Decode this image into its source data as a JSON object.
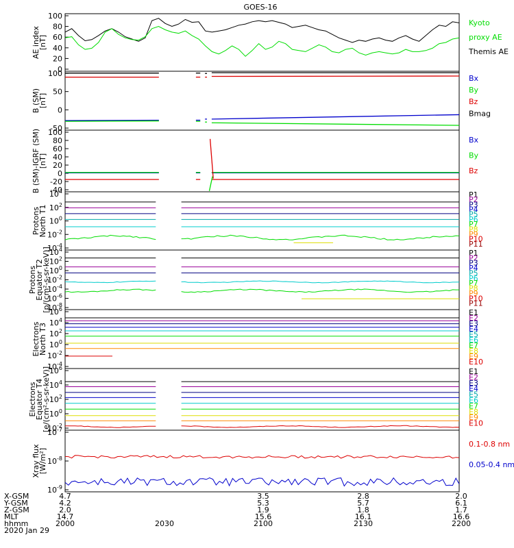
{
  "title": "GOES-16",
  "colors": {
    "black": "#000000",
    "green": "#00dd00",
    "blue": "#0000cc",
    "red": "#dd0000",
    "navy": "#000080",
    "purple": "#990099",
    "cyan": "#00cccc",
    "teal": "#00aaaa",
    "orange": "#ff8800",
    "yellow": "#dddd00",
    "darkred": "#990000"
  },
  "chart_data": [
    {
      "type": "line",
      "id": "ae",
      "ylabel": [
        "AE index",
        "[nT]"
      ],
      "yticks": [
        "100",
        "80",
        "60",
        "40",
        "20",
        "0"
      ],
      "ylim": [
        0,
        100
      ],
      "legend": [
        {
          "text": "Kyoto",
          "color": "green"
        },
        {
          "text": "proxy AE",
          "color": "green"
        },
        {
          "text": "Themis AE",
          "color": "black"
        }
      ],
      "series": [
        {
          "name": "Themis AE",
          "color": "black",
          "values": [
            68,
            74,
            62,
            53,
            55,
            62,
            70,
            74,
            68,
            60,
            56,
            52,
            58,
            88,
            92,
            83,
            78,
            82,
            90,
            85,
            86,
            70,
            68,
            70,
            72,
            76,
            80,
            82,
            86,
            88,
            86,
            88,
            85,
            82,
            76,
            78,
            80,
            76,
            72,
            70,
            64,
            58,
            54,
            50,
            54,
            52,
            56,
            58,
            54,
            52,
            58,
            62,
            56,
            52,
            62,
            72,
            80,
            78,
            86,
            84
          ]
        },
        {
          "name": "Kyoto proxy AE",
          "color": "green",
          "values": [
            58,
            60,
            46,
            38,
            40,
            50,
            68,
            74,
            64,
            58,
            55,
            54,
            60,
            74,
            78,
            72,
            68,
            66,
            70,
            62,
            56,
            44,
            34,
            30,
            36,
            44,
            38,
            26,
            36,
            48,
            38,
            42,
            52,
            48,
            38,
            36,
            34,
            40,
            46,
            42,
            34,
            32,
            38,
            40,
            32,
            28,
            32,
            34,
            32,
            30,
            32,
            38,
            34,
            34,
            36,
            40,
            48,
            50,
            56,
            58
          ]
        }
      ]
    },
    {
      "type": "line",
      "id": "bsm",
      "ylabel": [
        "B (SM)",
        "[nT]"
      ],
      "yticks": [
        "100",
        "50",
        "0",
        "-50"
      ],
      "ylim": [
        -60,
        100
      ],
      "legend": [
        {
          "text": "Bx",
          "color": "blue"
        },
        {
          "text": "By",
          "color": "green"
        },
        {
          "text": "Bz",
          "color": "red"
        },
        {
          "text": "Bmag",
          "color": "black"
        }
      ],
      "series": [
        {
          "name": "Bmag",
          "color": "black",
          "segments": [
            [
              0,
              0.238,
              95,
              95
            ],
            [
              0.332,
              0.343,
              95,
              95
            ],
            [
              0.355,
              0.36,
              94,
              94
            ],
            [
              0.372,
              1,
              96,
              96
            ]
          ]
        },
        {
          "name": "Bz",
          "color": "red",
          "segments": [
            [
              0,
              0.238,
              84,
              84
            ],
            [
              0.332,
              0.343,
              84,
              84
            ],
            [
              0.355,
              0.36,
              84,
              84
            ],
            [
              0.372,
              1,
              86,
              87
            ]
          ]
        },
        {
          "name": "Bx",
          "color": "blue",
          "segments": [
            [
              0,
              0.238,
              -34,
              -33
            ],
            [
              0.332,
              0.343,
              -33,
              -33
            ],
            [
              0.355,
              0.36,
              -30,
              -30
            ],
            [
              0.372,
              1,
              -30,
              -18
            ]
          ]
        },
        {
          "name": "By",
          "color": "green",
          "segments": [
            [
              0,
              0.238,
              -36,
              -35
            ],
            [
              0.332,
              0.343,
              -36,
              -36
            ],
            [
              0.355,
              0.36,
              -38,
              -38
            ],
            [
              0.372,
              1,
              -40,
              -47
            ]
          ]
        }
      ]
    },
    {
      "type": "line",
      "id": "bigrf",
      "ylabel": [
        "B (SM)-IGRF (SM)",
        "[nT]"
      ],
      "yticks": [
        "100",
        "80",
        "60",
        "40",
        "20",
        "0",
        "-20",
        "-40"
      ],
      "ylim": [
        -40,
        100
      ],
      "legend": [
        {
          "text": "Bx",
          "color": "blue"
        },
        {
          "text": "By",
          "color": "green"
        },
        {
          "text": "Bz",
          "color": "red"
        }
      ],
      "series": [
        {
          "name": "Bx",
          "color": "blue",
          "segments": [
            [
              0,
              0.238,
              3,
              3
            ],
            [
              0.332,
              0.343,
              3,
              3
            ],
            [
              0.372,
              1,
              3,
              3
            ]
          ]
        },
        {
          "name": "By",
          "color": "green",
          "segments": [
            [
              0,
              0.238,
              4,
              4
            ],
            [
              0.332,
              0.343,
              4,
              4
            ],
            [
              0.372,
              1,
              4,
              4
            ]
          ]
        },
        {
          "name": "Bz",
          "color": "red",
          "segments": [
            [
              0,
              0.238,
              -12,
              -12
            ],
            [
              0.332,
              0.343,
              -12,
              -12
            ],
            [
              0.372,
              1,
              -12,
              -12
            ]
          ]
        },
        {
          "name": "Spike Bz",
          "color": "red",
          "segments": [
            [
              0.368,
              0.376,
              80,
              -10
            ]
          ]
        },
        {
          "name": "Spike By",
          "color": "green",
          "segments": [
            [
              0.366,
              0.374,
              -38,
              -5
            ]
          ]
        }
      ]
    },
    {
      "type": "line",
      "id": "pn",
      "log": true,
      "ylabel": [
        "Protons",
        "North T1"
      ],
      "yticks": [
        "10^4",
        "10^2",
        "10^0",
        "10^-2",
        "10^-4"
      ],
      "ylim": [
        -4,
        4
      ],
      "legend": [
        "P1",
        "P2",
        "P3",
        "P4",
        "P5",
        "P6",
        "P7",
        "P8",
        "P9",
        "P10",
        "P11"
      ],
      "legend_colors": [
        "black",
        "purple",
        "navy",
        "blue",
        "teal",
        "cyan",
        "green",
        "yellow",
        "orange",
        "red",
        "darkred"
      ],
      "gap": [
        0.23,
        0.295
      ],
      "series": [
        {
          "name": "P1",
          "color": "black",
          "level": 2.6
        },
        {
          "name": "P2",
          "color": "purple",
          "level": 1.8
        },
        {
          "name": "P3",
          "color": "navy",
          "level": 1.0
        },
        {
          "name": "P5",
          "color": "teal",
          "level": 0.2
        },
        {
          "name": "P6",
          "color": "cyan",
          "level": -0.8
        },
        {
          "name": "P7",
          "color": "green",
          "level": -2.3,
          "wiggle": 0.5
        },
        {
          "name": "P8",
          "color": "yellow",
          "level": -3.0,
          "from": 0.58,
          "to": 0.68
        }
      ]
    },
    {
      "type": "line",
      "id": "pe",
      "log": true,
      "ylabel": [
        "Protons",
        "Equator T2",
        "[p/(cm²-s-sr-keV)]"
      ],
      "yticks": [
        "10^4",
        "10^2",
        "10^0",
        "10^-2",
        "10^-4",
        "10^-6",
        "10^-8"
      ],
      "ylim": [
        -8,
        4
      ],
      "legend": [
        "P1",
        "P2",
        "P3",
        "P4",
        "P5",
        "P6",
        "P7",
        "P8",
        "P9",
        "P10",
        "P11"
      ],
      "legend_colors": [
        "black",
        "purple",
        "navy",
        "blue",
        "teal",
        "cyan",
        "green",
        "yellow",
        "orange",
        "red",
        "darkred"
      ],
      "gap": [
        0.23,
        0.295
      ],
      "series": [
        {
          "name": "P1",
          "color": "black",
          "level": 2.4
        },
        {
          "name": "P2",
          "color": "purple",
          "level": 0.6
        },
        {
          "name": "P3",
          "color": "navy",
          "level": -0.6
        },
        {
          "name": "P5",
          "color": "cyan",
          "level": -2.4,
          "wiggle": 0.3
        },
        {
          "name": "P7",
          "color": "green",
          "level": -4.2,
          "wiggle": 0.5
        },
        {
          "name": "P8",
          "color": "yellow",
          "level": -5.8,
          "from": 0.6,
          "to": 1
        }
      ]
    },
    {
      "type": "line",
      "id": "en",
      "log": true,
      "ylabel": [
        "Electrons",
        "North T3"
      ],
      "yticks": [
        "10^6",
        "10^4",
        "10^2",
        "10^0",
        "10^-2",
        "10^-4"
      ],
      "ylim": [
        -4,
        6
      ],
      "legend": [
        "E1",
        "E2",
        "E3",
        "E4",
        "E5",
        "E6",
        "E7",
        "E8",
        "E9",
        "E10"
      ],
      "legend_colors": [
        "black",
        "purple",
        "navy",
        "blue",
        "teal",
        "cyan",
        "green",
        "yellow",
        "orange",
        "red"
      ],
      "series": [
        {
          "name": "E1",
          "color": "black",
          "level": 4.6
        },
        {
          "name": "E2",
          "color": "purple",
          "level": 4.1
        },
        {
          "name": "E3",
          "color": "navy",
          "level": 3.6
        },
        {
          "name": "E4",
          "color": "blue",
          "level": 3.0
        },
        {
          "name": "E5",
          "color": "cyan",
          "level": 2.4
        },
        {
          "name": "E6",
          "color": "green",
          "level": 1.5
        },
        {
          "name": "E7",
          "color": "yellow",
          "level": 0.3
        },
        {
          "name": "E8",
          "color": "orange",
          "level": -0.6
        },
        {
          "name": "E9",
          "color": "red",
          "level": -1.9,
          "from": 0,
          "to": 0.12
        }
      ]
    },
    {
      "type": "line",
      "id": "ee",
      "log": true,
      "ylabel": [
        "Electrons",
        "Equator T4",
        "[e/(cm²-s-sr-keV)]"
      ],
      "yticks": [
        "10^6",
        "10^4",
        "10^2",
        "10^0",
        "10^-2"
      ],
      "ylim": [
        -2.5,
        6
      ],
      "legend": [
        "E1",
        "E2",
        "E3",
        "E4",
        "E5",
        "E6",
        "E7",
        "E8",
        "E9",
        "E10"
      ],
      "legend_colors": [
        "black",
        "purple",
        "navy",
        "blue",
        "teal",
        "cyan",
        "green",
        "yellow",
        "orange",
        "red"
      ],
      "gap": [
        0.23,
        0.295
      ],
      "series": [
        {
          "name": "E1",
          "color": "black",
          "level": 4.2
        },
        {
          "name": "E2",
          "color": "purple",
          "level": 3.5
        },
        {
          "name": "E3",
          "color": "navy",
          "level": 2.7
        },
        {
          "name": "E4",
          "color": "blue",
          "level": 2.0
        },
        {
          "name": "E5",
          "color": "cyan",
          "level": 1.2
        },
        {
          "name": "E6",
          "color": "green",
          "level": 0.4
        },
        {
          "name": "E7",
          "color": "yellow",
          "level": -0.5
        },
        {
          "name": "E8",
          "color": "orange",
          "level": -1.2
        },
        {
          "name": "E9",
          "color": "red",
          "level": -2.0,
          "wiggle": 0.2
        }
      ]
    },
    {
      "type": "line",
      "id": "xray",
      "log": true,
      "ylabel": [
        "Xray flux",
        "[W/m²]"
      ],
      "yticks": [
        "10^-7",
        "10^-8",
        "10^-9"
      ],
      "ylim": [
        -9.2,
        -7
      ],
      "legend": [
        {
          "text": "0.1-0.8 nm",
          "color": "red"
        },
        {
          "text": "0.05-0.4 nm",
          "color": "blue"
        }
      ],
      "series": [
        {
          "name": "0.1-0.8 nm",
          "color": "red",
          "level": -7.95,
          "noise": 0.05
        },
        {
          "name": "0.05-0.4 nm",
          "color": "blue",
          "level": -8.85,
          "noise": 0.15
        }
      ]
    }
  ],
  "xaxis": {
    "rows": [
      {
        "label": "X-GSM",
        "vals": [
          "4.7",
          "",
          "3.5",
          "2.8",
          "2.0"
        ]
      },
      {
        "label": "Y-GSM",
        "vals": [
          "4.2",
          "",
          "5.3",
          "5.7",
          "6.1"
        ]
      },
      {
        "label": "Z-GSM",
        "vals": [
          "2.0",
          "",
          "1.9",
          "1.8",
          "1.7"
        ]
      },
      {
        "label": "MLT",
        "vals": [
          "14.7",
          "",
          "15.6",
          "16.1",
          "16.6"
        ]
      },
      {
        "label": "hhmm",
        "vals": [
          "2000",
          "2030",
          "2100",
          "2130",
          "2200"
        ]
      }
    ],
    "date": "2020 Jan 29"
  }
}
